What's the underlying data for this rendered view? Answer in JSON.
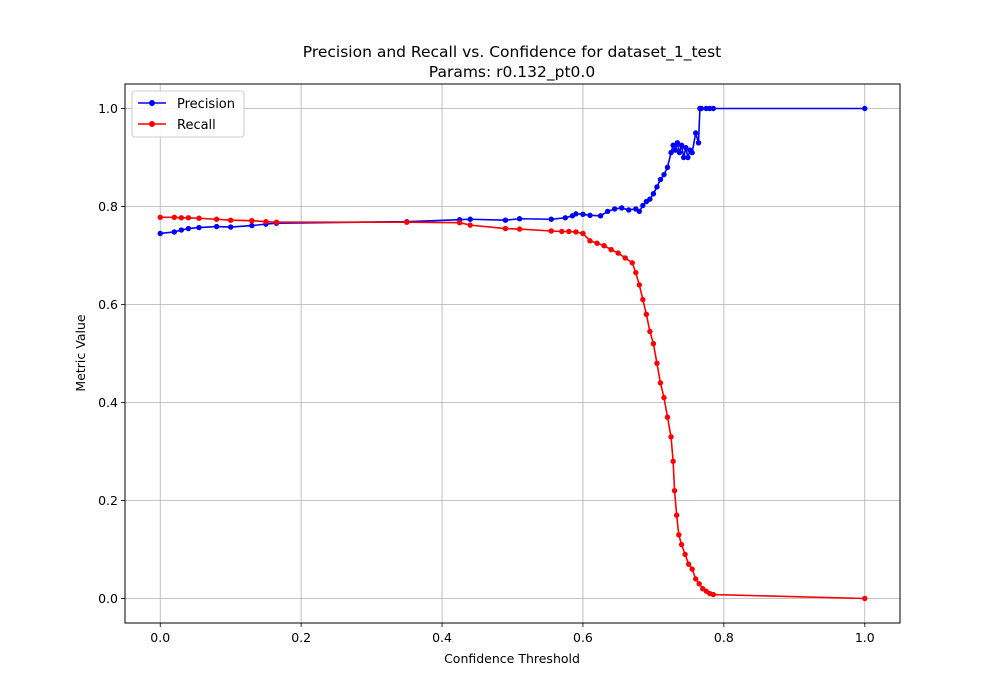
{
  "chart_data": {
    "type": "line",
    "title": "Precision and Recall vs. Confidence for dataset_1_test",
    "subtitle": "Params: r0.132_pt0.0",
    "xlabel": "Confidence Threshold",
    "ylabel": "Metric Value",
    "xlim": [
      -0.05,
      1.05
    ],
    "ylim": [
      -0.05,
      1.05
    ],
    "xticks": [
      0.0,
      0.2,
      0.4,
      0.6,
      0.8,
      1.0
    ],
    "xtick_labels": [
      "0.0",
      "0.2",
      "0.4",
      "0.6",
      "0.8",
      "1.0"
    ],
    "yticks": [
      0.0,
      0.2,
      0.4,
      0.6,
      0.8,
      1.0
    ],
    "ytick_labels": [
      "0.0",
      "0.2",
      "0.4",
      "0.6",
      "0.8",
      "1.0"
    ],
    "grid": true,
    "legend_position": "upper-left",
    "series": [
      {
        "name": "Precision",
        "color": "#0000ff",
        "x": [
          0.0,
          0.02,
          0.03,
          0.04,
          0.055,
          0.08,
          0.1,
          0.13,
          0.15,
          0.165,
          0.35,
          0.425,
          0.44,
          0.49,
          0.51,
          0.555,
          0.575,
          0.585,
          0.59,
          0.6,
          0.61,
          0.625,
          0.635,
          0.645,
          0.655,
          0.665,
          0.675,
          0.68,
          0.685,
          0.69,
          0.695,
          0.7,
          0.705,
          0.71,
          0.715,
          0.72,
          0.725,
          0.728,
          0.731,
          0.734,
          0.737,
          0.74,
          0.743,
          0.746,
          0.749,
          0.752,
          0.755,
          0.76,
          0.764,
          0.766,
          0.768,
          0.775,
          0.78,
          0.785,
          1.0
        ],
        "y": [
          0.745,
          0.748,
          0.752,
          0.755,
          0.757,
          0.759,
          0.758,
          0.761,
          0.764,
          0.766,
          0.769,
          0.773,
          0.774,
          0.772,
          0.775,
          0.774,
          0.777,
          0.781,
          0.785,
          0.784,
          0.782,
          0.781,
          0.79,
          0.795,
          0.797,
          0.793,
          0.795,
          0.79,
          0.802,
          0.81,
          0.815,
          0.826,
          0.84,
          0.855,
          0.865,
          0.88,
          0.91,
          0.925,
          0.915,
          0.93,
          0.91,
          0.925,
          0.9,
          0.92,
          0.9,
          0.915,
          0.91,
          0.95,
          0.93,
          1.0,
          1.0,
          1.0,
          1.0,
          1.0,
          1.0
        ]
      },
      {
        "name": "Recall",
        "color": "#ff0000",
        "x": [
          0.0,
          0.02,
          0.03,
          0.04,
          0.055,
          0.08,
          0.1,
          0.13,
          0.15,
          0.165,
          0.35,
          0.425,
          0.44,
          0.49,
          0.51,
          0.555,
          0.57,
          0.58,
          0.59,
          0.6,
          0.61,
          0.62,
          0.63,
          0.64,
          0.65,
          0.66,
          0.67,
          0.675,
          0.68,
          0.685,
          0.69,
          0.695,
          0.7,
          0.705,
          0.71,
          0.715,
          0.72,
          0.725,
          0.728,
          0.73,
          0.733,
          0.736,
          0.74,
          0.745,
          0.75,
          0.755,
          0.76,
          0.765,
          0.77,
          0.775,
          0.78,
          0.785,
          1.0
        ],
        "y": [
          0.778,
          0.778,
          0.777,
          0.777,
          0.776,
          0.774,
          0.772,
          0.771,
          0.769,
          0.768,
          0.768,
          0.767,
          0.762,
          0.755,
          0.754,
          0.75,
          0.749,
          0.749,
          0.748,
          0.745,
          0.73,
          0.725,
          0.72,
          0.712,
          0.705,
          0.695,
          0.685,
          0.665,
          0.64,
          0.61,
          0.58,
          0.545,
          0.52,
          0.48,
          0.44,
          0.41,
          0.37,
          0.33,
          0.28,
          0.22,
          0.17,
          0.13,
          0.11,
          0.09,
          0.07,
          0.06,
          0.04,
          0.03,
          0.02,
          0.015,
          0.01,
          0.008,
          0.0
        ]
      }
    ]
  }
}
